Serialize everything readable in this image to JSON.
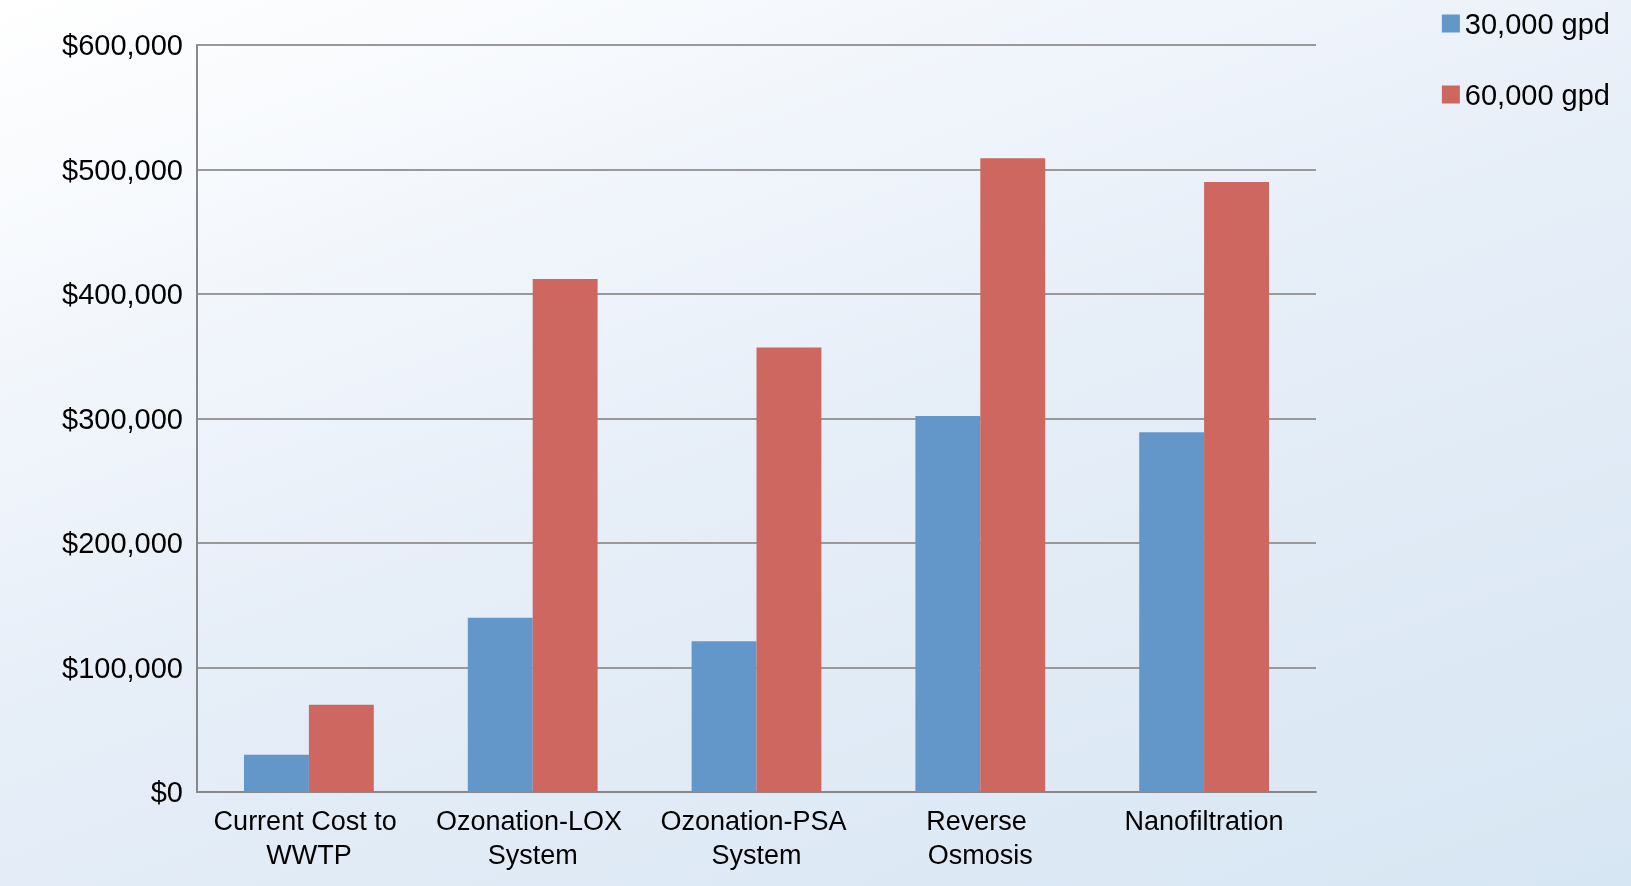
{
  "chart_data": {
    "type": "bar",
    "categories": [
      "Current Cost to WWTP",
      "Ozonation-LOX System",
      "Ozonation-PSA System",
      "Reverse Osmosis",
      "Nanofiltration"
    ],
    "series": [
      {
        "name": "30,000 gpd",
        "color": "#6497c9",
        "values": [
          30000,
          140000,
          121000,
          302000,
          289000
        ]
      },
      {
        "name": "60,000 gpd",
        "color": "#cd6760",
        "values": [
          70000,
          412000,
          357000,
          509000,
          490000
        ]
      }
    ],
    "ylim": [
      0,
      600000
    ],
    "yticks": [
      {
        "value": 0,
        "label": "$0"
      },
      {
        "value": 100000,
        "label": "$100,000"
      },
      {
        "value": 200000,
        "label": "$200,000"
      },
      {
        "value": 300000,
        "label": "$300,000"
      },
      {
        "value": 400000,
        "label": "$400,000"
      },
      {
        "value": 500000,
        "label": "$500,000"
      },
      {
        "value": 600000,
        "label": "$600,000"
      }
    ],
    "grid": "y",
    "legend": "top right"
  }
}
